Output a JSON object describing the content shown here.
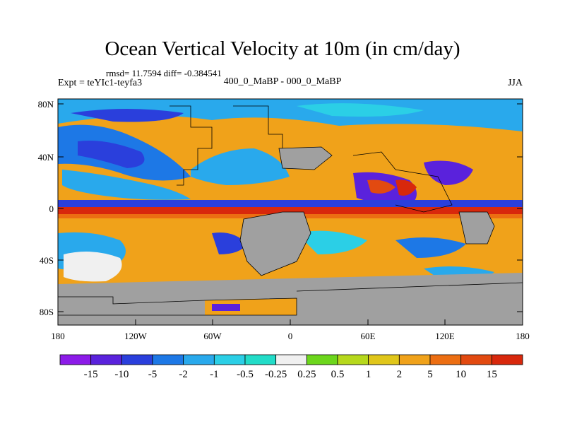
{
  "title": "Ocean Vertical Velocity at 10m (in cm/day)",
  "stats_line": "rmsd= 11.7594 diff= -0.384541",
  "experiment_label": "Expt = teYIc1-teyfa3",
  "center_label": "400_0_MaBP - 000_0_MaBP",
  "season_label": "JJA",
  "y_ticks": [
    "80N",
    "40N",
    "0",
    "40S",
    "80S"
  ],
  "x_ticks": [
    "180",
    "120W",
    "60W",
    "0",
    "60E",
    "120E",
    "180"
  ],
  "colorbar": {
    "labels": [
      "-15",
      "-10",
      "-5",
      "-2",
      "-1",
      "-0.5",
      "-0.25",
      "0.25",
      "0.5",
      "1",
      "2",
      "5",
      "10",
      "15"
    ],
    "colors": [
      "#8c1be8",
      "#5a22dc",
      "#2a3fdc",
      "#1d78e6",
      "#29a9ec",
      "#2bcfe6",
      "#22dcc8",
      "#f0f0f0",
      "#6cd61c",
      "#b6d81c",
      "#e0c61a",
      "#f0a21a",
      "#ec6e12",
      "#e24a10",
      "#d8280c"
    ]
  },
  "colors": {
    "land": "#a0a0a0"
  }
}
